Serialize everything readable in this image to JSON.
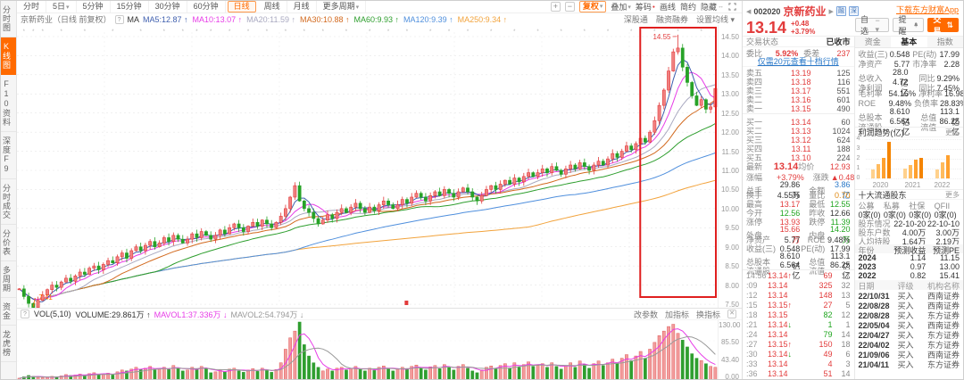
{
  "sidebar": {
    "items": [
      {
        "id": "fenshitu",
        "label": "分时图",
        "active": false
      },
      {
        "id": "kxiantu",
        "label": "K线图",
        "active": true
      },
      {
        "id": "f10ziliao",
        "label": "F10资料",
        "active": false
      },
      {
        "id": "shendu-f9",
        "label": "深度F9",
        "active": false
      },
      {
        "id": "fenshichengjiao",
        "label": "分时成交",
        "active": false
      },
      {
        "id": "fenjiabiao",
        "label": "分价表",
        "active": false
      },
      {
        "id": "duozhouqi",
        "label": "多周期",
        "active": false
      },
      {
        "id": "zijin",
        "label": "资金",
        "active": false
      },
      {
        "id": "longhubang",
        "label": "龙虎榜",
        "active": false
      }
    ]
  },
  "toolbar": {
    "periods": [
      {
        "label": "分时"
      },
      {
        "label": "5日",
        "caret": true
      },
      {
        "label": "5分钟"
      },
      {
        "label": "15分钟"
      },
      {
        "label": "30分钟"
      },
      {
        "label": "60分钟"
      },
      {
        "label": "日线",
        "active": true
      },
      {
        "label": "周线"
      },
      {
        "label": "月线"
      },
      {
        "label": "更多周期",
        "caret": true
      }
    ]
  },
  "tools": {
    "zoom_in": "+",
    "zoom_out": "−",
    "fuquan": "复权",
    "overlay": "叠加",
    "chips": "筹码",
    "draw": "画线",
    "simple": "简约",
    "hide": "隐藏"
  },
  "chart_header": {
    "title": "京新药业（日线 前复权）",
    "ma_label": "MA",
    "mas": [
      {
        "label": "MA5:12.87",
        "color": "#3f5fae"
      },
      {
        "label": "MA10:13.07",
        "color": "#e73ce7"
      },
      {
        "label": "MA20:11.59",
        "color": "#a9a9c0"
      },
      {
        "label": "MA30:10.88",
        "color": "#d2691e"
      },
      {
        "label": "MA60:9.93",
        "color": "#2e9e2e"
      },
      {
        "label": "MA120:9.39",
        "color": "#4f8fdd"
      },
      {
        "label": "MA250:9.34",
        "color": "#f2a33c"
      }
    ]
  },
  "links": {
    "sgt": "深股通",
    "rzrq": "融资融券",
    "ma_setting": "设置均线"
  },
  "vol_header": {
    "indicator": "VOL(5,10)",
    "volume": {
      "label": "VOLUME:29.861万",
      "dir": "↑",
      "color": "#333"
    },
    "mavol1": {
      "label": "MAVOL1:37.336万",
      "dir": "↓",
      "color": "#e73ce7"
    },
    "mavol2": {
      "label": "MAVOL2:54.794万",
      "dir": "↓",
      "color": "#999"
    },
    "actions": [
      "改参数",
      "加指标",
      "换指标"
    ],
    "close": "✕"
  },
  "header": {
    "code": "002020",
    "name": "京新药业",
    "badges": [
      "融",
      "深"
    ],
    "price": "13.14",
    "chg": "+0.48",
    "pct": "+3.79%",
    "download": "下载东方财富App",
    "watch": "自选",
    "alert": "提醒",
    "trade": "交易",
    "status_label": "交易状态",
    "status": "已收市"
  },
  "quote": {
    "weibi_label": "委比",
    "weibi": "5.92%",
    "weicha_label": "委差",
    "weicha": "237",
    "ten_link": "仅需20元查看十档行情",
    "sells": [
      [
        "卖五",
        "13.19",
        "125"
      ],
      [
        "卖四",
        "13.18",
        "116"
      ],
      [
        "卖三",
        "13.17",
        "551"
      ],
      [
        "卖二",
        "13.16",
        "601"
      ],
      [
        "卖一",
        "13.15",
        "490"
      ]
    ],
    "buys": [
      [
        "买一",
        "13.14",
        "60"
      ],
      [
        "买二",
        "13.13",
        "1024"
      ],
      [
        "买三",
        "13.12",
        "624"
      ],
      [
        "买四",
        "13.11",
        "188"
      ],
      [
        "买五",
        "13.10",
        "224"
      ]
    ],
    "latest_label": "最新",
    "latest": "13.14",
    "avg_label": "均价",
    "avg": "12.93",
    "stats": [
      {
        "l1": "涨幅",
        "v1": "+3.79%",
        "c1": "red",
        "l2": "涨跌",
        "v2": "▲0.48",
        "c2": "red"
      },
      {
        "l1": "总手",
        "v1": "29.86万",
        "c1": "dark",
        "l2": "金额",
        "v2": "3.86亿",
        "c2": "blue"
      },
      {
        "l1": "换手",
        "v1": "4.55%",
        "c1": "dark",
        "l2": "量比",
        "v2": "0.70",
        "c2": "org"
      },
      {
        "l1": "最高",
        "v1": "13.17",
        "c1": "red",
        "l2": "最低",
        "v2": "12.55",
        "c2": "green"
      },
      {
        "l1": "今开",
        "v1": "12.56",
        "c1": "green",
        "l2": "昨收",
        "v2": "12.66",
        "c2": "dark"
      },
      {
        "l1": "涨停",
        "v1": "13.93",
        "c1": "red",
        "l2": "跌停",
        "v2": "11.39",
        "c2": "green"
      },
      {
        "l1": "外盘",
        "v1": "15.66万",
        "c1": "red",
        "l2": "内盘",
        "v2": "14.20万",
        "c2": "green"
      },
      {
        "l1": "净资产",
        "v1": "5.77",
        "c1": "dark",
        "l2": "ROE",
        "v2": "9.48%",
        "c2": "dark"
      },
      {
        "l1": "收益(三)",
        "v1": "0.548",
        "c1": "dark",
        "l2": "PE(动)",
        "v2": "17.99",
        "c2": "dark"
      },
      {
        "l1": "总股本",
        "v1": "8.610亿",
        "c1": "dark",
        "l2": "总值",
        "v2": "113.1亿",
        "c2": "dark"
      },
      {
        "l1": "流通股",
        "v1": "6.564亿",
        "c1": "dark",
        "l2": "流值",
        "v2": "86.25亿",
        "c2": "dark"
      }
    ],
    "ticks": [
      {
        "t": "14:56",
        "p": "13.14",
        "d": "up",
        "v": "69",
        "vc": "red",
        "n": "17"
      },
      {
        "t": ":09",
        "p": "13.14",
        "d": "",
        "v": "325",
        "vc": "red",
        "n": "32"
      },
      {
        "t": ":12",
        "p": "13.14",
        "d": "",
        "v": "148",
        "vc": "red",
        "n": "13"
      },
      {
        "t": ":15",
        "p": "13.15",
        "d": "up",
        "v": "27",
        "vc": "red",
        "n": "5"
      },
      {
        "t": ":18",
        "p": "13.15",
        "d": "",
        "v": "82",
        "vc": "green",
        "n": "12"
      },
      {
        "t": ":21",
        "p": "13.14",
        "d": "down",
        "v": "1",
        "vc": "green",
        "n": "1"
      },
      {
        "t": ":24",
        "p": "13.14",
        "d": "",
        "v": "79",
        "vc": "green",
        "n": "14"
      },
      {
        "t": ":27",
        "p": "13.15",
        "d": "up",
        "v": "150",
        "vc": "red",
        "n": "18"
      },
      {
        "t": ":30",
        "p": "13.14",
        "d": "down",
        "v": "49",
        "vc": "red",
        "n": "6"
      },
      {
        "t": ":33",
        "p": "13.14",
        "d": "",
        "v": "4",
        "vc": "red",
        "n": "3"
      },
      {
        "t": ":36",
        "p": "13.14",
        "d": "",
        "v": "51",
        "vc": "red",
        "n": "14"
      }
    ]
  },
  "tabs": {
    "items": [
      "资金",
      "基本",
      "指数"
    ],
    "active": 1
  },
  "fund": {
    "rows": [
      {
        "l1": "收益(三)",
        "v1": "0.548",
        "c1": "dark",
        "l2": "PE(动)",
        "v2": "17.99",
        "c2": "dark"
      },
      {
        "l1": "净资产",
        "v1": "5.77",
        "c1": "dark",
        "l2": "市净率",
        "v2": "2.28",
        "c2": "dark"
      },
      {
        "l1": "总收入",
        "v1": "28.0亿",
        "c1": "dark",
        "l2": "同比",
        "v2": "9.29%",
        "c2": "dark"
      },
      {
        "l1": "净利润",
        "v1": "4.72亿",
        "c1": "dark",
        "l2": "同比",
        "v2": "7.45%",
        "c2": "dark"
      },
      {
        "l1": "毛利率",
        "v1": "54.16%",
        "c1": "dark",
        "l2": "净利率",
        "v2": "16.98%",
        "c2": "dark"
      },
      {
        "l1": "ROE",
        "v1": "9.48%",
        "c1": "dark",
        "l2": "负债率",
        "v2": "28.83%",
        "c2": "dark"
      },
      {
        "l1": "总股本",
        "v1": "8.610亿",
        "c1": "dark",
        "l2": "总值",
        "v2": "113.1亿",
        "c2": "dark"
      },
      {
        "l1": "流通股",
        "v1": "6.564亿",
        "c1": "dark",
        "l2": "流值",
        "v2": "86.25亿",
        "c2": "dark"
      }
    ]
  },
  "profit_trend": {
    "title": "利润趋势(亿)",
    "more": "更多",
    "ymax": 4,
    "yticks": [
      "4",
      "3",
      "2",
      "1",
      "0"
    ],
    "groups": [
      {
        "year": "2020",
        "values": [
          0.9,
          1.5,
          2.1,
          3.7
        ]
      },
      {
        "year": "2021",
        "values": [
          1.0,
          1.4,
          1.9,
          2.1
        ]
      },
      {
        "year": "2022",
        "values": [
          0.9,
          1.6,
          2.4
        ]
      }
    ]
  },
  "holders": {
    "title": "十大流通股东",
    "more": "更多",
    "cats": [
      "公募",
      "私募",
      "社保",
      "QFII"
    ],
    "vals": [
      "0家(0)",
      "0家(0)",
      "0家(0)",
      "0家(0)"
    ],
    "rows": [
      [
        "股东情况",
        "22-10-20",
        "22-10-10"
      ],
      [
        "股东户数",
        "4.00万",
        "3.00万"
      ],
      [
        "人均持股",
        "1.64万",
        "2.19万"
      ]
    ]
  },
  "forecast": {
    "header": [
      "年份",
      "预测收益",
      "预测PE"
    ],
    "rows": [
      [
        "2024",
        "1.14",
        "11.15"
      ],
      [
        "2023",
        "0.97",
        "13.00"
      ],
      [
        "2022",
        "0.82",
        "15.41"
      ]
    ]
  },
  "ratings": {
    "header": [
      "日期",
      "评级",
      "机构名称"
    ],
    "rows": [
      [
        "22/10/31",
        "买入",
        "西南证券"
      ],
      [
        "22/08/28",
        "买入",
        "西南证券"
      ],
      [
        "22/08/28",
        "买入",
        "东方证券"
      ],
      [
        "22/05/04",
        "买入",
        "西南证券"
      ],
      [
        "22/04/27",
        "买入",
        "东方证券"
      ],
      [
        "22/04/02",
        "买入",
        "东方证券"
      ],
      [
        "21/09/06",
        "买入",
        "西南证券"
      ],
      [
        "21/04/11",
        "买入",
        "东方证券"
      ]
    ]
  },
  "chart_data": {
    "type": "candlestick",
    "title": "京新药业 日线 前复权",
    "price_axis": [
      "14.50",
      "14.00",
      "13.50",
      "13.00",
      "12.50",
      "12.00",
      "11.50",
      "11.00",
      "10.50",
      "10.00",
      "9.50",
      "9.00",
      "8.50",
      "8.00",
      "7.50"
    ],
    "volume_axis": [
      "130.00",
      "85.50",
      "43.40",
      "0.00"
    ],
    "colors": {
      "up": "#e23b3b",
      "up_fill": "#f08080",
      "down": "#27a227",
      "highlight": "#e01f1f",
      "grid": "#e7e7e7"
    },
    "ma_lines": [
      {
        "name": "MA250",
        "window": 110,
        "color": "#f2a33c"
      },
      {
        "name": "MA120",
        "window": 60,
        "color": "#4f8fdd"
      },
      {
        "name": "MA60",
        "window": 30,
        "color": "#2e9e2e"
      },
      {
        "name": "MA30",
        "window": 18,
        "color": "#d2691e"
      },
      {
        "name": "MA20",
        "window": 12,
        "color": "#a9a9c0"
      },
      {
        "name": "MA10",
        "window": 7,
        "color": "#e73ce7"
      },
      {
        "name": "MA5",
        "window": 4,
        "color": "#3f5fae"
      }
    ],
    "highlight": {
      "from_index": 134,
      "to_index": 149
    },
    "annotations": {
      "high": {
        "index": 141,
        "value": 14.55,
        "label": "14.55"
      },
      "low": {
        "index": 3,
        "value": 7.41,
        "label": "7.41"
      }
    },
    "event_marker_index": 83,
    "news_markers": [
      1,
      3,
      5,
      9,
      14,
      20,
      26,
      31,
      35,
      38,
      41,
      45,
      49,
      53,
      57,
      61,
      65,
      70,
      75,
      79,
      83,
      88,
      92,
      96,
      101,
      106,
      111,
      116,
      121,
      126,
      131,
      136,
      141,
      146
    ],
    "closes": [
      7.9,
      7.7,
      7.52,
      7.41,
      7.6,
      7.74,
      7.88,
      8.0,
      7.94,
      8.08,
      8.18,
      8.1,
      8.24,
      8.34,
      8.28,
      8.44,
      8.5,
      8.4,
      8.54,
      8.64,
      8.58,
      8.74,
      8.84,
      8.7,
      8.9,
      9.0,
      8.9,
      9.04,
      9.14,
      9.0,
      9.1,
      9.24,
      9.14,
      9.3,
      9.2,
      9.1,
      9.2,
      9.34,
      9.24,
      9.4,
      9.3,
      9.2,
      9.3,
      9.44,
      9.34,
      9.5,
      9.6,
      9.5,
      9.4,
      9.54,
      9.64,
      9.54,
      9.7,
      9.6,
      9.5,
      9.64,
      9.8,
      10.0,
      10.3,
      10.6,
      10.2,
      10.0,
      9.9,
      9.74,
      9.6,
      9.7,
      9.84,
      9.74,
      9.9,
      10.0,
      9.9,
      10.04,
      10.14,
      10.0,
      9.9,
      10.04,
      9.94,
      10.1,
      10.2,
      10.1,
      10.0,
      10.1,
      10.24,
      10.14,
      10.3,
      10.4,
      10.3,
      10.2,
      10.34,
      10.44,
      10.34,
      10.5,
      10.4,
      10.3,
      10.44,
      10.54,
      10.44,
      10.3,
      10.2,
      10.34,
      10.5,
      10.6,
      10.5,
      10.64,
      10.74,
      10.64,
      10.8,
      10.7,
      10.84,
      10.94,
      10.84,
      10.94,
      11.04,
      10.94,
      11.1,
      11.0,
      10.9,
      11.04,
      11.14,
      11.04,
      11.2,
      11.1,
      11.0,
      11.14,
      11.24,
      11.14,
      11.3,
      11.44,
      11.34,
      11.5,
      11.64,
      11.54,
      11.7,
      11.84,
      11.74,
      12.0,
      12.3,
      12.7,
      13.1,
      13.6,
      14.1,
      14.2,
      13.7,
      13.3,
      12.95,
      12.7,
      12.85,
      12.6,
      12.66,
      13.14
    ],
    "volumes": [
      6,
      9,
      12,
      10,
      8,
      7,
      8,
      10,
      9,
      11,
      14,
      12,
      13,
      15,
      12,
      16,
      18,
      14,
      15,
      17,
      13,
      20,
      24,
      22,
      26,
      30,
      25,
      28,
      32,
      24,
      26,
      30,
      25,
      34,
      28,
      22,
      24,
      30,
      26,
      32,
      27,
      18,
      20,
      24,
      20,
      26,
      28,
      22,
      19,
      24,
      27,
      21,
      28,
      23,
      19,
      25,
      40,
      70,
      95,
      110,
      130,
      80,
      55,
      40,
      30,
      22,
      26,
      22,
      28,
      30,
      24,
      28,
      32,
      25,
      22,
      28,
      23,
      30,
      33,
      27,
      22,
      26,
      30,
      25,
      32,
      35,
      28,
      24,
      31,
      34,
      27,
      36,
      30,
      24,
      32,
      36,
      28,
      22,
      18,
      24,
      30,
      33,
      26,
      34,
      38,
      28,
      40,
      30,
      36,
      42,
      32,
      34,
      38,
      30,
      40,
      32,
      26,
      34,
      40,
      30,
      44,
      36,
      28,
      38,
      44,
      34,
      40,
      48,
      38,
      50,
      58,
      45,
      55,
      65,
      50,
      70,
      85,
      100,
      110,
      120,
      125,
      105,
      90,
      75,
      60,
      50,
      45,
      38,
      32,
      30
    ]
  }
}
